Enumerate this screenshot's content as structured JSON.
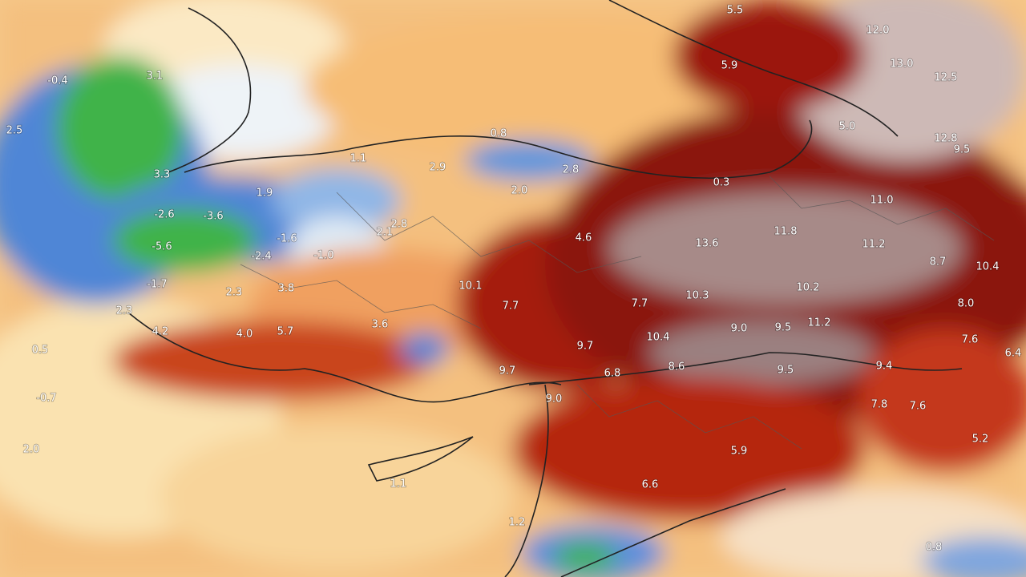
{
  "labels": [
    "5.5",
    "12.0",
    "13.0",
    "12.5",
    "5.9",
    "5.0",
    "12.8",
    "9.5",
    "0.8",
    "1.1",
    "2.9",
    "2.8",
    "0.3",
    "2.0",
    "3.3",
    "3.1",
    "-0.4",
    "2.5",
    "1.9",
    "-2.6",
    "-3.6",
    "2.8",
    "2.1",
    "-1.6",
    "4.6",
    "13.6",
    "11.8",
    "11.0",
    "11.2",
    "-5.6",
    "-2.4",
    "-1.0",
    "8.7",
    "10.4",
    "-1.7",
    "2.3",
    "3.8",
    "10.1",
    "7.7",
    "7.7",
    "10.3",
    "10.2",
    "8.0",
    "2.3",
    "4.2",
    "4.0",
    "5.7",
    "3.6",
    "9.0",
    "9.5",
    "11.2",
    "10.4",
    "9.7",
    "7.6",
    "6.4",
    "9.7",
    "6.8",
    "8.6",
    "9.5",
    "9.4",
    "9.0",
    "7.8",
    "7.6",
    "5.2",
    "5.9",
    "6.6",
    "2.0",
    "1.1",
    "1.2",
    "0.8",
    "0.5",
    "-0.7"
  ]
}
